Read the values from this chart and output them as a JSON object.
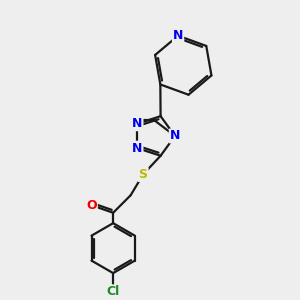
{
  "bg_color": "#eeeeee",
  "bond_color": "#1a1a1a",
  "bond_width": 1.6,
  "atom_colors": {
    "N": "#0000ee",
    "O": "#ee0000",
    "S": "#bbbb00",
    "Cl": "#228822",
    "C": "#1a1a1a"
  },
  "dbo": 0.055,
  "font_size": 9
}
